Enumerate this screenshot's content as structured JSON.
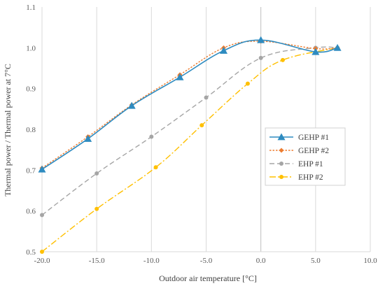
{
  "chart_data": {
    "type": "line",
    "title": "",
    "xlabel": "Outdoor air temperature [°C]",
    "ylabel": "Thermal power / Thermal power at 7°C",
    "xlim": [
      -20,
      10
    ],
    "ylim": [
      0.5,
      1.1
    ],
    "x_ticks": [
      -20,
      -15,
      -10,
      -5,
      0,
      5,
      10
    ],
    "x_tick_labels": [
      "-20.0",
      "-15.0",
      "-10.0",
      "-5.0",
      "0.0",
      "5.0",
      "10.0"
    ],
    "y_ticks": [
      0.5,
      0.6,
      0.7,
      0.8,
      0.9,
      1.0,
      1.1
    ],
    "y_tick_labels": [
      "0.5",
      "0.6",
      "0.7",
      "0.8",
      "0.9",
      "1.0",
      "1.1"
    ],
    "grid": "vertical",
    "legend_position": "right",
    "series": [
      {
        "name": "GEHP #1",
        "color": "#2E8BC0",
        "dash": "solid",
        "marker": "triangle",
        "x": [
          -20,
          -15.8,
          -11.8,
          -7.4,
          -3.4,
          0,
          5,
          7
        ],
        "y": [
          0.702,
          0.777,
          0.858,
          0.928,
          0.993,
          1.019,
          0.99,
          1.0
        ]
      },
      {
        "name": "GEHP #2",
        "color": "#ED7D31",
        "dash": "dotted",
        "marker": "diamond",
        "x": [
          -20,
          -15.8,
          -11.8,
          -7.4,
          -3.4,
          0,
          5,
          7
        ],
        "y": [
          0.705,
          0.782,
          0.86,
          0.934,
          1.0,
          1.016,
          0.998,
          1.0
        ]
      },
      {
        "name": "EHP #1",
        "color": "#A5A5A5",
        "dash": "dashed",
        "marker": "circle",
        "x": [
          -20,
          -15,
          -10,
          -5,
          0,
          5,
          7
        ],
        "y": [
          0.59,
          0.692,
          0.782,
          0.878,
          0.975,
          1.0,
          1.0
        ]
      },
      {
        "name": "EHP #2",
        "color": "#FFC000",
        "dash": "dashdot",
        "marker": "circle",
        "x": [
          -20,
          -15,
          -9.6,
          -5.4,
          -1.2,
          2,
          7
        ],
        "y": [
          0.5,
          0.605,
          0.707,
          0.81,
          0.912,
          0.97,
          1.0
        ]
      }
    ]
  }
}
